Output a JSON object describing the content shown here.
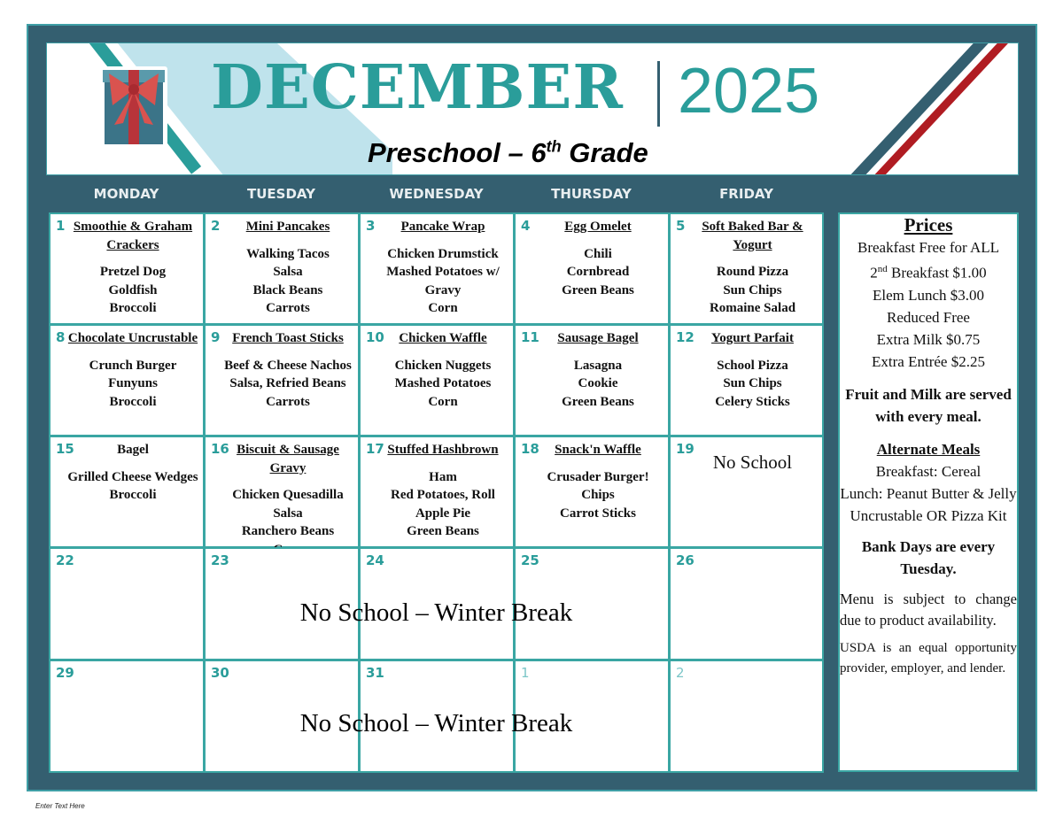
{
  "header": {
    "month": "DECEMBER",
    "year": "2025",
    "subtitle_pre": "Preschool – 6",
    "subtitle_sup": "th",
    "subtitle_post": " Grade"
  },
  "days": [
    "MONDAY",
    "TUESDAY",
    "WEDNESDAY",
    "THURSDAY",
    "FRIDAY"
  ],
  "weeks": [
    [
      {
        "d": "1",
        "entree": "Smoothie & Graham Crackers",
        "items": [
          "Pretzel Dog",
          "Goldfish",
          "Broccoli"
        ]
      },
      {
        "d": "2",
        "entree": "Mini Pancakes",
        "items": [
          "Walking Tacos",
          "Salsa",
          "Black Beans",
          "Carrots"
        ]
      },
      {
        "d": "3",
        "entree": "Pancake Wrap",
        "items": [
          "Chicken Drumstick",
          "Mashed Potatoes w/ Gravy",
          "Corn"
        ]
      },
      {
        "d": "4",
        "entree": "Egg Omelet",
        "items": [
          "Chili",
          "Cornbread",
          "Green Beans"
        ]
      },
      {
        "d": "5",
        "entree": "Soft Baked Bar & Yogurt",
        "items": [
          "Round Pizza",
          "Sun Chips",
          "Romaine Salad"
        ]
      }
    ],
    [
      {
        "d": "8",
        "entree": "Chocolate Uncrustable",
        "items": [
          "Crunch Burger",
          "Funyuns",
          "Broccoli"
        ]
      },
      {
        "d": "9",
        "entree": "French Toast Sticks",
        "items": [
          "Beef & Cheese Nachos",
          "Salsa, Refried Beans",
          "Carrots"
        ]
      },
      {
        "d": "10",
        "entree": "Chicken Waffle",
        "items": [
          "Chicken Nuggets",
          "Mashed Potatoes",
          "Corn"
        ]
      },
      {
        "d": "11",
        "entree": "Sausage Bagel",
        "items": [
          "Lasagna",
          "Cookie",
          "Green Beans"
        ]
      },
      {
        "d": "12",
        "entree": "Yogurt Parfait",
        "items": [
          "School Pizza",
          "Sun Chips",
          "Celery Sticks"
        ]
      }
    ],
    [
      {
        "d": "15",
        "entree": "Bagel",
        "plain": true,
        "items": [
          "Grilled Cheese Wedges",
          "Broccoli"
        ]
      },
      {
        "d": "16",
        "entree": "Biscuit & Sausage Gravy",
        "items": [
          "Chicken Quesadilla",
          "Salsa",
          "Ranchero Beans",
          "Corn"
        ]
      },
      {
        "d": "17",
        "entree": "Stuffed Hashbrown",
        "items": [
          "Ham",
          "Red Potatoes, Roll",
          "Apple Pie",
          "Green Beans"
        ]
      },
      {
        "d": "18",
        "entree": "Snack'n Waffle",
        "items": [
          "Crusader Burger!",
          "Chips",
          "Carrot Sticks"
        ]
      },
      {
        "d": "19",
        "note": "No School"
      }
    ],
    [
      {
        "d": "22"
      },
      {
        "d": "23"
      },
      {
        "d": "24"
      },
      {
        "d": "25"
      },
      {
        "d": "26"
      }
    ],
    [
      {
        "d": "29"
      },
      {
        "d": "30"
      },
      {
        "d": "31"
      },
      {
        "d": "1",
        "dim": true
      },
      {
        "d": "2",
        "dim": true
      }
    ]
  ],
  "breaks": [
    "No School – Winter Break",
    "No School – Winter Break"
  ],
  "sidebar": {
    "prices_title": "Prices",
    "prices": [
      "Breakfast Free for ALL",
      "2nd Breakfast $1.00",
      "Elem Lunch $3.00",
      "Reduced Free",
      "Extra Milk $0.75",
      "Extra Entrée $2.25"
    ],
    "fruit_note": "Fruit and Milk are served with every meal.",
    "alt_title": "Alternate Meals",
    "alt": [
      "Breakfast: Cereal",
      "Lunch: Peanut Butter & Jelly Uncrustable OR Pizza Kit"
    ],
    "bank": "Bank Days are every Tuesday.",
    "menu_note": "Menu is subject to change due to product availability.",
    "usda": "USDA is an equal opportunity provider, employer, and lender."
  },
  "footer": "Enter Text Here",
  "colors": {
    "frame": "#345f70",
    "teal": "#2a9d9a",
    "red": "#b01c22"
  }
}
